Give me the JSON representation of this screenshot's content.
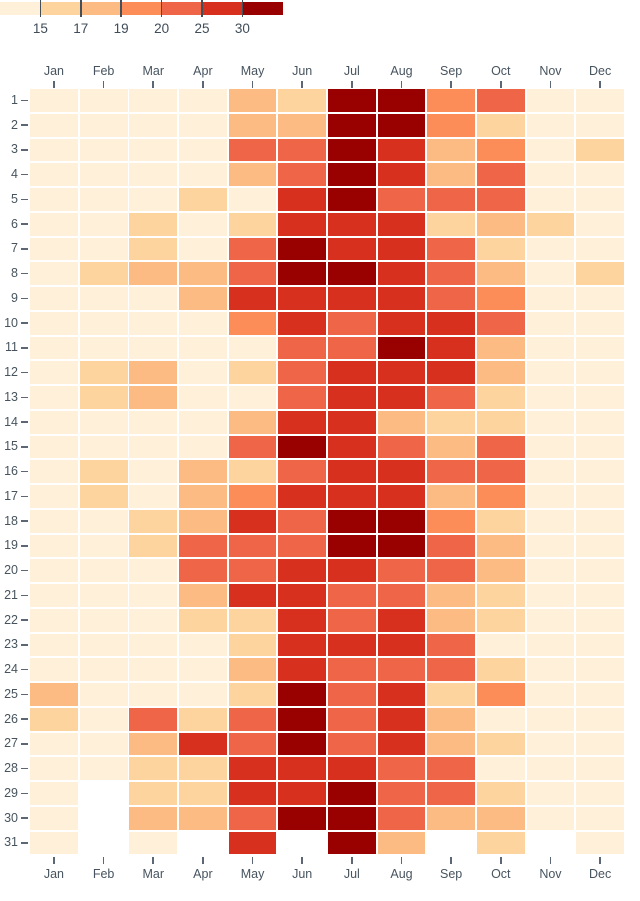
{
  "chart_data": {
    "type": "heatmap",
    "title": "",
    "xlabel": "",
    "ylabel": "",
    "x_categories": [
      "Jan",
      "Feb",
      "Mar",
      "Apr",
      "May",
      "Jun",
      "Jul",
      "Aug",
      "Sep",
      "Oct",
      "Nov",
      "Dec"
    ],
    "y_categories": [
      "1",
      "2",
      "3",
      "4",
      "5",
      "6",
      "7",
      "8",
      "9",
      "10",
      "11",
      "12",
      "13",
      "14",
      "15",
      "16",
      "17",
      "18",
      "19",
      "20",
      "21",
      "22",
      "23",
      "24",
      "25",
      "26",
      "27",
      "28",
      "29",
      "30",
      "31"
    ],
    "legend": {
      "tick_labels": [
        "15",
        "17",
        "19",
        "20",
        "25",
        "30"
      ],
      "bin_colors": [
        "#fef0d9",
        "#fdd49e",
        "#fdbb84",
        "#fc8d59",
        "#ef6548",
        "#d7301f",
        "#990000"
      ]
    },
    "layout": {
      "x_axis": "months shown on top and bottom",
      "y_axis": "day of month 1-31 on left",
      "missing_days": "blank cells (Feb 29-31, Apr 31, Jun 31, Sep 31, Nov 31)",
      "legend_position": "top-left"
    },
    "bins": [
      [
        1,
        1,
        1,
        1,
        3,
        2,
        7,
        7,
        4,
        5,
        1,
        1
      ],
      [
        1,
        1,
        1,
        1,
        3,
        3,
        7,
        7,
        4,
        2,
        1,
        1
      ],
      [
        1,
        1,
        1,
        1,
        5,
        5,
        7,
        6,
        3,
        4,
        1,
        2
      ],
      [
        1,
        1,
        1,
        1,
        3,
        5,
        7,
        6,
        3,
        5,
        1,
        1
      ],
      [
        1,
        1,
        1,
        2,
        1,
        6,
        7,
        5,
        5,
        5,
        1,
        1
      ],
      [
        1,
        1,
        2,
        1,
        2,
        6,
        6,
        6,
        2,
        3,
        2,
        1
      ],
      [
        1,
        1,
        2,
        1,
        5,
        7,
        6,
        6,
        5,
        2,
        1,
        1
      ],
      [
        1,
        2,
        3,
        3,
        5,
        7,
        7,
        6,
        5,
        3,
        1,
        2
      ],
      [
        1,
        1,
        1,
        3,
        6,
        6,
        6,
        6,
        5,
        4,
        1,
        1
      ],
      [
        1,
        1,
        1,
        1,
        4,
        6,
        5,
        6,
        6,
        5,
        1,
        1
      ],
      [
        1,
        1,
        1,
        1,
        1,
        5,
        5,
        7,
        6,
        3,
        1,
        1
      ],
      [
        1,
        2,
        3,
        1,
        2,
        5,
        6,
        6,
        6,
        3,
        1,
        1
      ],
      [
        1,
        2,
        3,
        1,
        1,
        5,
        6,
        6,
        5,
        2,
        1,
        1
      ],
      [
        1,
        1,
        1,
        1,
        3,
        6,
        6,
        3,
        2,
        2,
        1,
        1
      ],
      [
        1,
        1,
        1,
        1,
        5,
        7,
        6,
        5,
        3,
        5,
        1,
        1
      ],
      [
        1,
        2,
        1,
        3,
        2,
        5,
        6,
        6,
        5,
        5,
        1,
        1
      ],
      [
        1,
        2,
        1,
        3,
        4,
        6,
        6,
        6,
        3,
        4,
        1,
        1
      ],
      [
        1,
        1,
        2,
        3,
        6,
        5,
        7,
        7,
        4,
        2,
        1,
        1
      ],
      [
        1,
        1,
        2,
        5,
        5,
        5,
        7,
        7,
        5,
        3,
        1,
        1
      ],
      [
        1,
        1,
        1,
        5,
        5,
        6,
        6,
        5,
        5,
        3,
        1,
        1
      ],
      [
        1,
        1,
        1,
        3,
        6,
        6,
        5,
        5,
        3,
        2,
        1,
        1
      ],
      [
        1,
        1,
        1,
        2,
        2,
        6,
        5,
        6,
        3,
        2,
        1,
        1
      ],
      [
        1,
        1,
        1,
        1,
        2,
        6,
        6,
        6,
        5,
        1,
        1,
        1
      ],
      [
        1,
        1,
        1,
        1,
        3,
        6,
        5,
        5,
        5,
        2,
        1,
        1
      ],
      [
        3,
        1,
        1,
        1,
        2,
        7,
        5,
        6,
        2,
        4,
        1,
        1
      ],
      [
        2,
        1,
        5,
        2,
        5,
        7,
        5,
        6,
        3,
        1,
        1,
        1
      ],
      [
        1,
        1,
        3,
        6,
        5,
        7,
        5,
        6,
        3,
        2,
        1,
        1
      ],
      [
        1,
        1,
        2,
        2,
        6,
        6,
        6,
        5,
        5,
        1,
        1,
        1
      ],
      [
        1,
        null,
        2,
        2,
        6,
        6,
        7,
        5,
        5,
        2,
        1,
        1
      ],
      [
        1,
        null,
        3,
        3,
        5,
        7,
        7,
        5,
        3,
        3,
        1,
        1
      ],
      [
        1,
        null,
        1,
        null,
        6,
        null,
        7,
        3,
        null,
        2,
        null,
        1
      ]
    ]
  },
  "colors": {
    "background": "#ffffff",
    "axis_text": "#47545f",
    "tick_mark": "#5c6773",
    "legend_tick": "#434f5b"
  }
}
